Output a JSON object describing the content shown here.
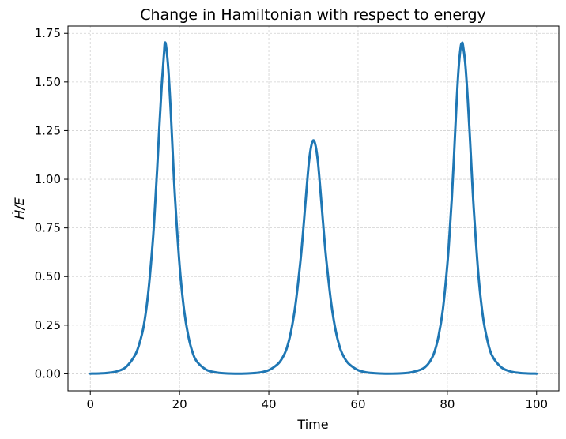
{
  "chart_data": {
    "type": "line",
    "title": "Change in Hamiltonian with respect to energy",
    "xlabel": "Time",
    "ylabel": "Ḣ/E",
    "xlim": [
      -5,
      105
    ],
    "ylim": [
      -0.0875,
      1.7875
    ],
    "xticks": [
      0,
      20,
      40,
      60,
      80,
      100
    ],
    "xtick_labels": [
      "0",
      "20",
      "40",
      "60",
      "80",
      "100"
    ],
    "yticks": [
      0,
      0.25,
      0.5,
      0.75,
      1.0,
      1.25,
      1.5,
      1.75
    ],
    "ytick_labels": [
      "0.00",
      "0.25",
      "0.50",
      "0.75",
      "1.00",
      "1.25",
      "1.50",
      "1.75"
    ],
    "grid": true,
    "series": [
      {
        "color": "#1f77b4",
        "x": [
          0,
          2,
          4,
          6,
          8,
          10,
          11,
          12,
          13,
          14,
          14.5,
          15,
          15.5,
          16,
          16.5,
          16.7,
          17,
          17.5,
          18,
          18.5,
          19,
          20,
          21,
          22,
          23,
          24,
          26,
          28,
          30,
          33.3,
          36,
          38,
          40,
          42,
          43,
          44,
          45,
          46,
          47,
          47.5,
          48,
          48.5,
          49,
          49.5,
          50,
          50.5,
          51,
          51.5,
          52,
          52.5,
          53,
          54,
          55,
          56,
          57,
          58,
          60,
          62,
          64,
          66.7,
          70,
          72,
          74,
          75,
          76,
          77,
          78,
          79,
          80,
          80.5,
          81,
          81.5,
          82,
          82.5,
          83,
          83.3,
          83.5,
          84,
          84.5,
          85,
          85.5,
          86,
          87,
          88,
          89,
          90,
          92,
          94,
          96,
          98,
          100
        ],
        "y": [
          0.001,
          0.002,
          0.005,
          0.013,
          0.035,
          0.095,
          0.155,
          0.25,
          0.42,
          0.68,
          0.86,
          1.06,
          1.28,
          1.48,
          1.64,
          1.7,
          1.68,
          1.56,
          1.36,
          1.12,
          0.9,
          0.56,
          0.33,
          0.19,
          0.105,
          0.06,
          0.021,
          0.008,
          0.003,
          0.001,
          0.003,
          0.007,
          0.019,
          0.05,
          0.08,
          0.13,
          0.22,
          0.36,
          0.56,
          0.68,
          0.82,
          0.96,
          1.09,
          1.17,
          1.2,
          1.17,
          1.09,
          0.96,
          0.82,
          0.68,
          0.56,
          0.36,
          0.22,
          0.13,
          0.08,
          0.05,
          0.019,
          0.007,
          0.003,
          0.001,
          0.003,
          0.008,
          0.021,
          0.034,
          0.06,
          0.105,
          0.19,
          0.33,
          0.56,
          0.72,
          0.9,
          1.12,
          1.36,
          1.56,
          1.68,
          1.7,
          1.69,
          1.6,
          1.44,
          1.24,
          1.02,
          0.82,
          0.5,
          0.29,
          0.17,
          0.095,
          0.035,
          0.013,
          0.005,
          0.002,
          0.001
        ]
      }
    ]
  }
}
